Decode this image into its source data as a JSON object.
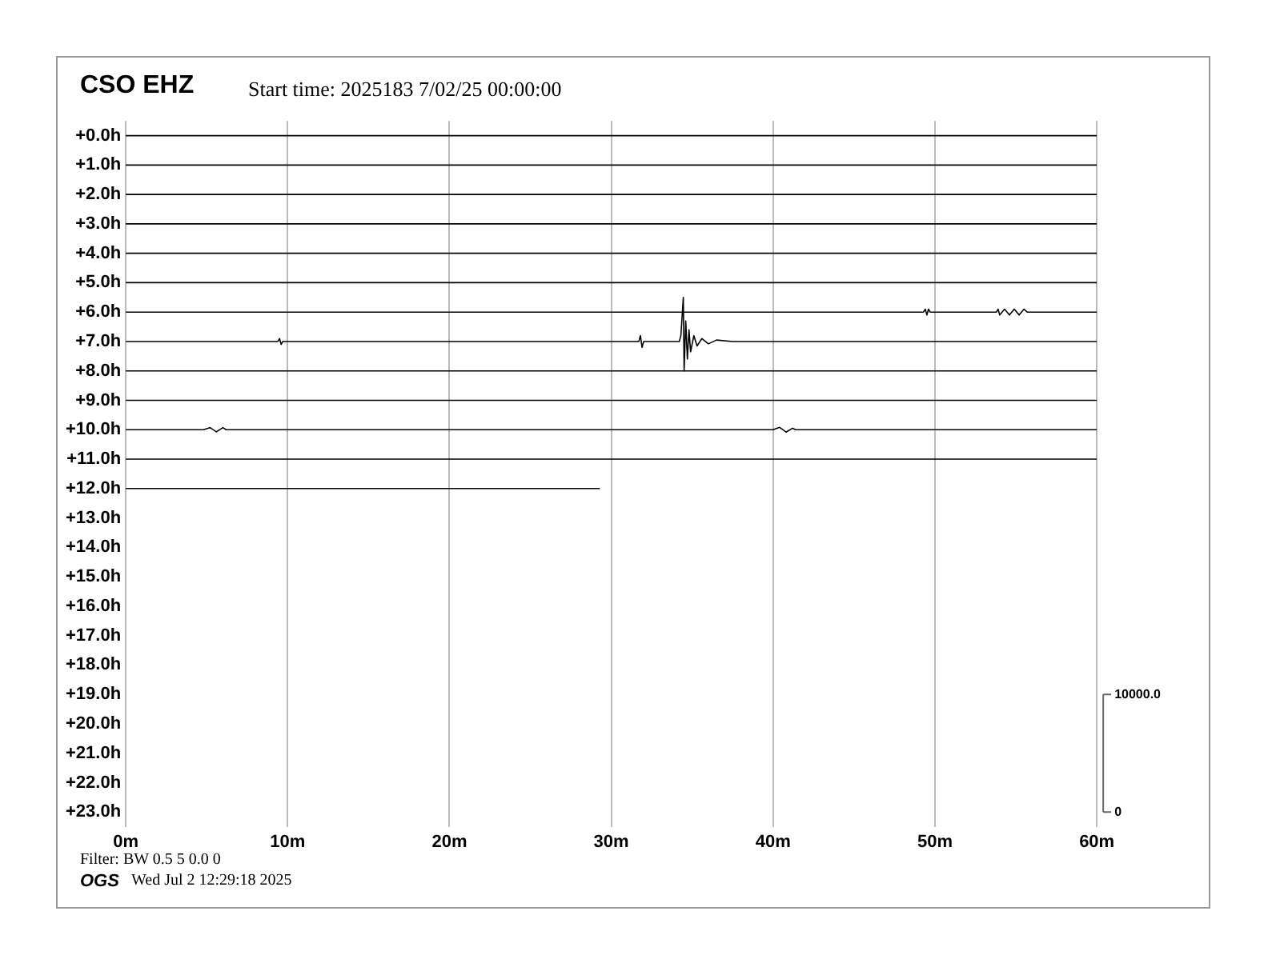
{
  "chart_data": {
    "type": "line",
    "title": "CSO EHZ",
    "subtitle": "Start time: 2025183  7/02/25 00:00:00",
    "annotations": [
      "Filter: BW 0.5 5 0.0 0",
      "OGS",
      "Wed Jul  2 12:29:18 2025"
    ],
    "xlim": [
      0,
      60
    ],
    "xticks": [
      {
        "value": 0,
        "label": "0m"
      },
      {
        "value": 10,
        "label": "10m"
      },
      {
        "value": 20,
        "label": "20m"
      },
      {
        "value": 30,
        "label": "30m"
      },
      {
        "value": 40,
        "label": "40m"
      },
      {
        "value": 50,
        "label": "50m"
      },
      {
        "value": 60,
        "label": "60m"
      }
    ],
    "ylim": [
      23.5,
      -0.5
    ],
    "yticks": [
      {
        "value": 0,
        "label": "+0.0h"
      },
      {
        "value": 1,
        "label": "+1.0h"
      },
      {
        "value": 2,
        "label": "+2.0h"
      },
      {
        "value": 3,
        "label": "+3.0h"
      },
      {
        "value": 4,
        "label": "+4.0h"
      },
      {
        "value": 5,
        "label": "+5.0h"
      },
      {
        "value": 6,
        "label": "+6.0h"
      },
      {
        "value": 7,
        "label": "+7.0h"
      },
      {
        "value": 8,
        "label": "+8.0h"
      },
      {
        "value": 9,
        "label": "+9.0h"
      },
      {
        "value": 10,
        "label": "+10.0h"
      },
      {
        "value": 11,
        "label": "+11.0h"
      },
      {
        "value": 12,
        "label": "+12.0h"
      },
      {
        "value": 13,
        "label": "+13.0h"
      },
      {
        "value": 14,
        "label": "+14.0h"
      },
      {
        "value": 15,
        "label": "+15.0h"
      },
      {
        "value": 16,
        "label": "+16.0h"
      },
      {
        "value": 17,
        "label": "+17.0h"
      },
      {
        "value": 18,
        "label": "+18.0h"
      },
      {
        "value": 19,
        "label": "+19.0h"
      },
      {
        "value": 20,
        "label": "+20.0h"
      },
      {
        "value": 21,
        "label": "+21.0h"
      },
      {
        "value": 22,
        "label": "+22.0h"
      },
      {
        "value": 23,
        "label": "+23.0h"
      }
    ],
    "y2lim": [
      -1250,
      58750
    ],
    "y2ticks": [
      {
        "value": 0,
        "label": "0"
      },
      {
        "value": 10000,
        "label": "10000.0"
      }
    ],
    "grid": "x",
    "legend": false,
    "marker": "none",
    "line_style": "solid",
    "series": [
      {
        "color": "#000000",
        "x": [
          0,
          60
        ],
        "values": [
          0,
          0
        ]
      },
      {
        "color": "#000000",
        "x": [
          0,
          60
        ],
        "values": [
          1,
          1
        ]
      },
      {
        "color": "#000000",
        "x": [
          0,
          60
        ],
        "values": [
          2,
          2
        ]
      },
      {
        "color": "#000000",
        "x": [
          0,
          60
        ],
        "values": [
          3,
          3
        ]
      },
      {
        "color": "#000000",
        "x": [
          0,
          60
        ],
        "values": [
          4,
          4
        ]
      },
      {
        "color": "#000000",
        "x": [
          0,
          60
        ],
        "values": [
          5,
          5
        ]
      },
      {
        "color": "#000000",
        "x": [
          0,
          49.3,
          49.4,
          49.5,
          49.6,
          49.7,
          53.8,
          53.9,
          54.0,
          54.3,
          54.6,
          54.9,
          55.2,
          55.5,
          55.7,
          60
        ],
        "values": [
          6,
          6,
          5.9,
          6.1,
          5.9,
          6,
          6,
          5.9,
          6.1,
          5.9,
          6.1,
          5.9,
          6.1,
          5.9,
          6,
          6
        ]
      },
      {
        "color": "#000000",
        "x": [
          0,
          9.4,
          9.5,
          9.6,
          9.7,
          31.7,
          31.8,
          31.9,
          32.0,
          34.2,
          34.3,
          34.45,
          34.5,
          34.6,
          34.7,
          34.8,
          34.9,
          35.1,
          35.3,
          35.6,
          36,
          36.5,
          37.5,
          60
        ],
        "values": [
          7,
          7,
          6.9,
          7.1,
          7,
          7,
          6.8,
          7.2,
          7,
          7,
          6.8,
          5.5,
          8.0,
          6.3,
          7.6,
          6.6,
          7.35,
          6.8,
          7.15,
          6.9,
          7.08,
          6.95,
          7,
          7
        ]
      },
      {
        "color": "#000000",
        "x": [
          0,
          60
        ],
        "values": [
          8,
          8
        ]
      },
      {
        "color": "#000000",
        "x": [
          0,
          60
        ],
        "values": [
          9,
          9
        ]
      },
      {
        "color": "#000000",
        "x": [
          0,
          4.8,
          5.2,
          5.6,
          6.0,
          6.2,
          40.0,
          40.4,
          40.8,
          41.2,
          41.4,
          60
        ],
        "values": [
          10,
          10,
          9.93,
          10.07,
          9.93,
          10,
          10,
          9.92,
          10.08,
          9.95,
          10,
          10
        ]
      },
      {
        "color": "#000000",
        "x": [
          0,
          60
        ],
        "values": [
          11,
          11
        ]
      },
      {
        "color": "#000000",
        "x": [
          0,
          29.3
        ],
        "values": [
          12,
          12
        ]
      }
    ]
  }
}
